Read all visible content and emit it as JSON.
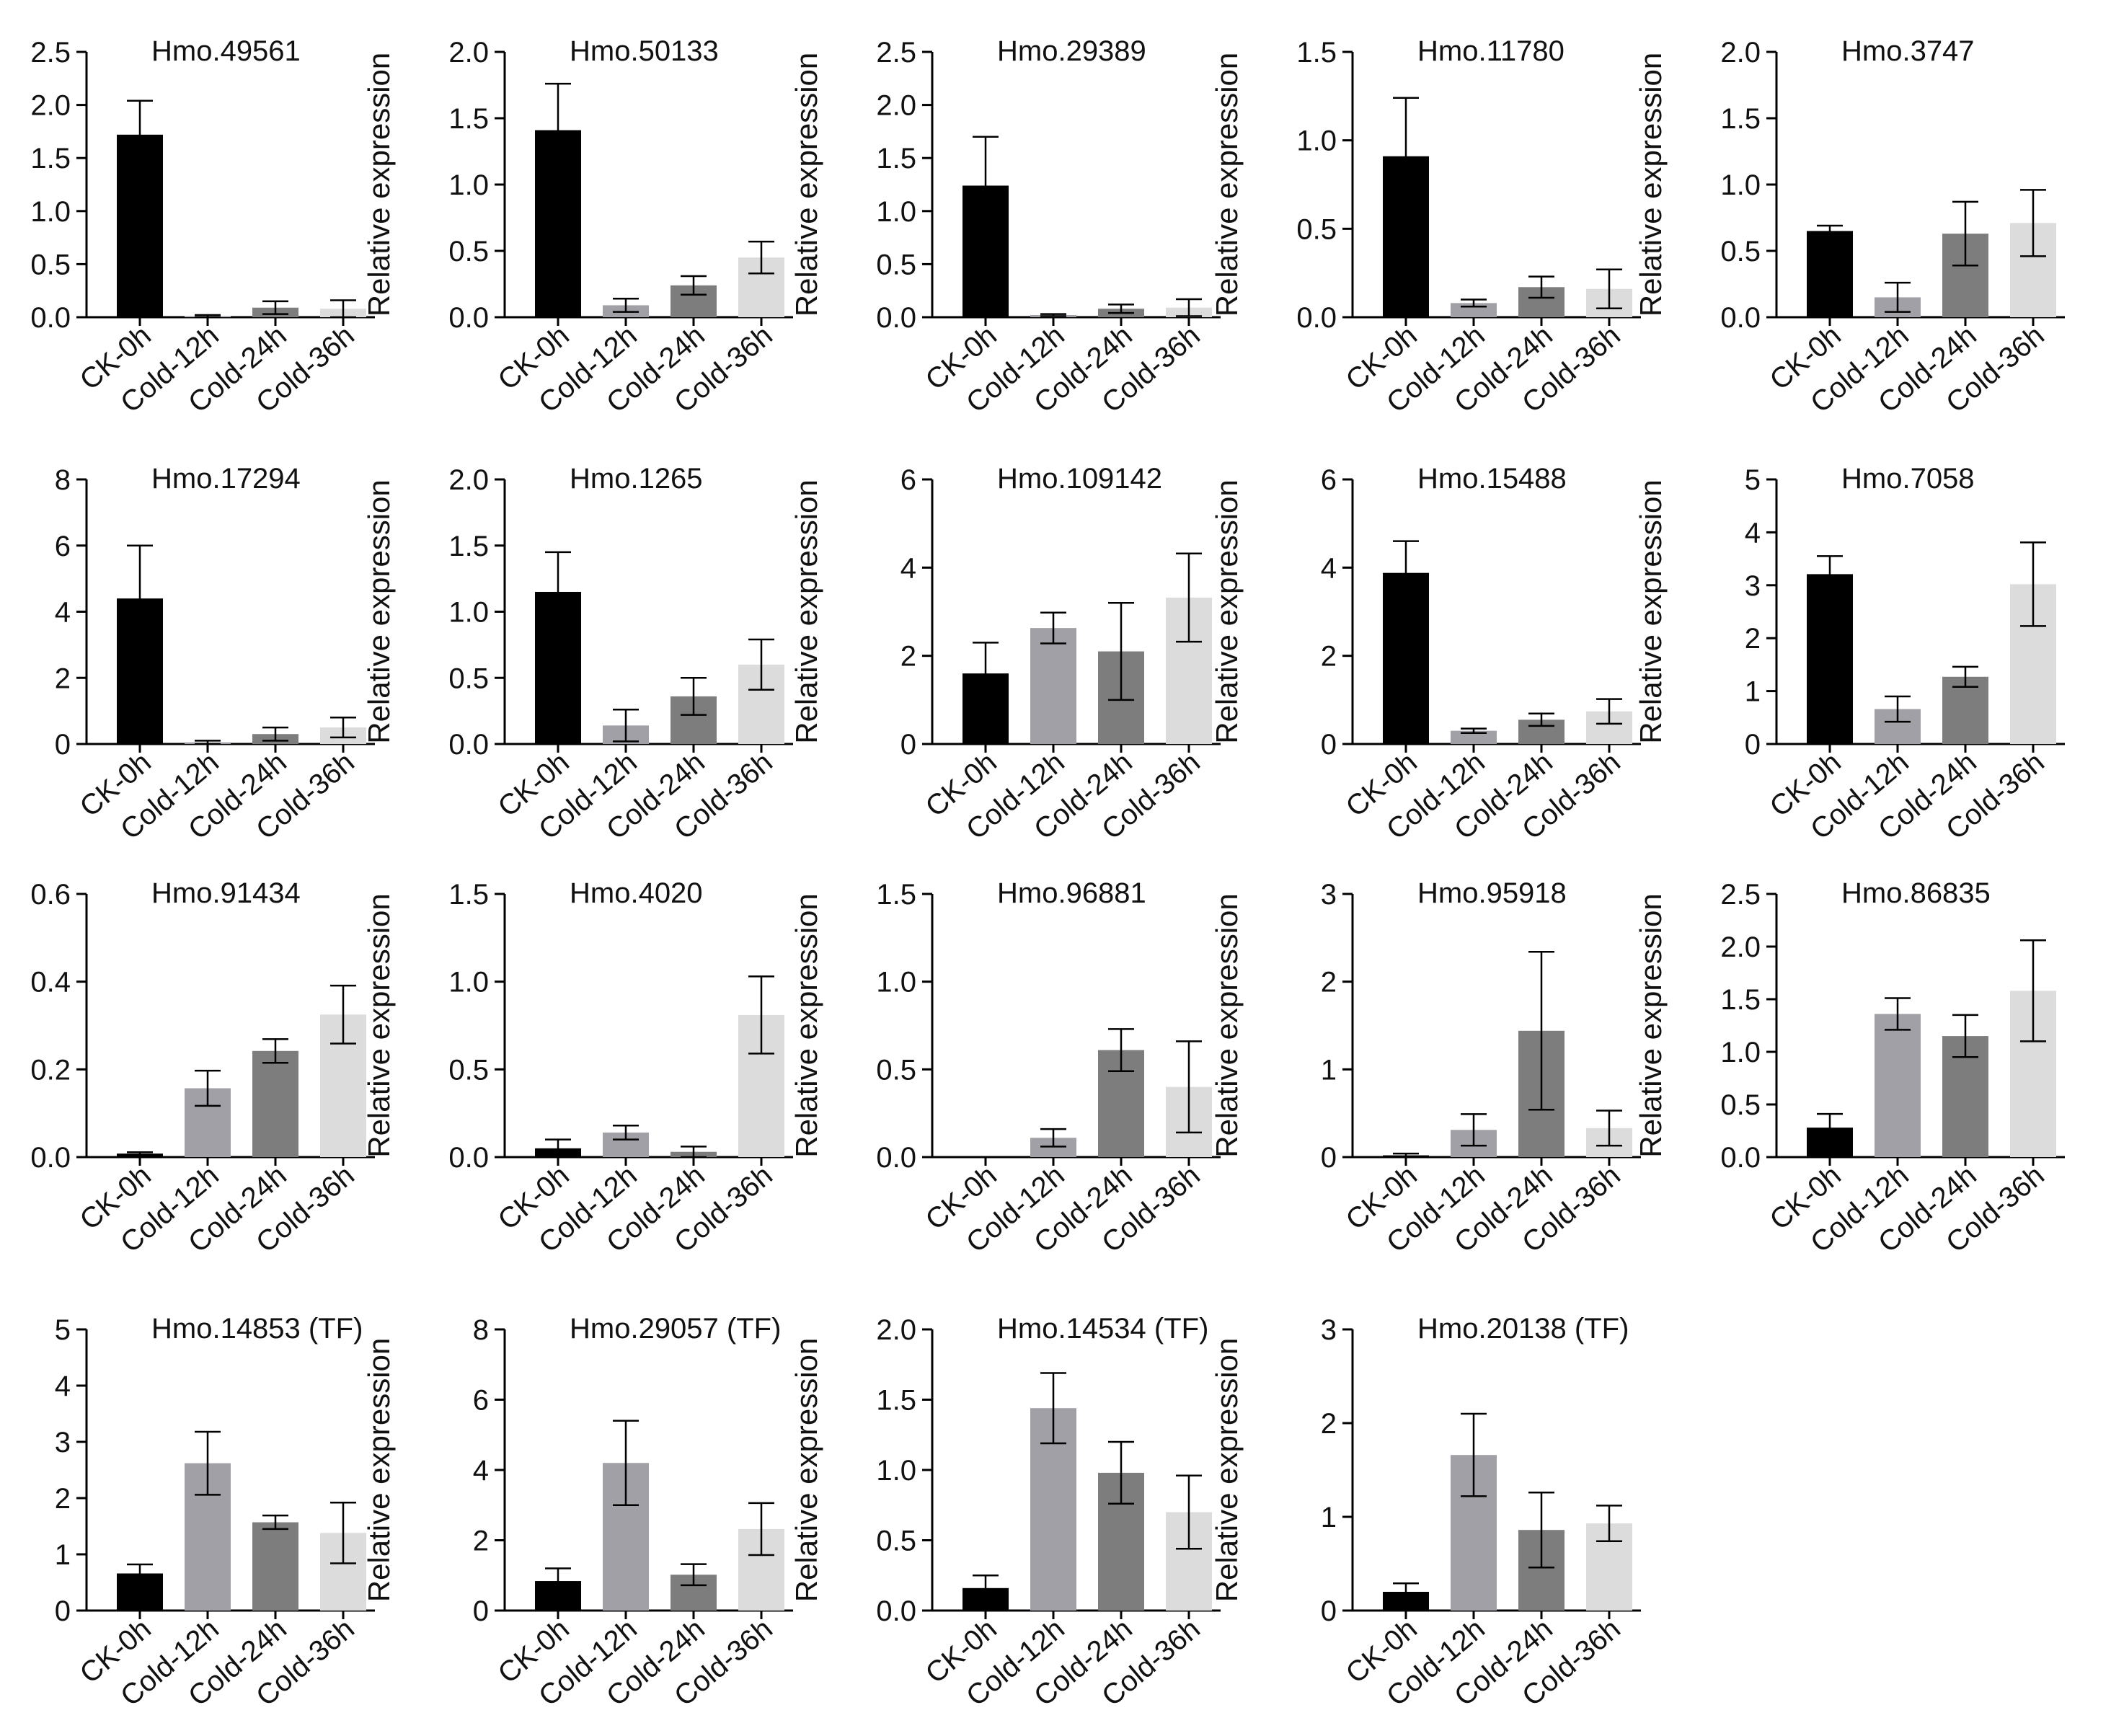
{
  "figure": {
    "ylabel": "Relative expression",
    "categories": [
      "CK-0h",
      "Cold-12h",
      "Cold-24h",
      "Cold-36h"
    ],
    "bar_colors": [
      "#000000",
      "#a0a0a6",
      "#7d7d7d",
      "#dcdcdc"
    ]
  },
  "chart_data": [
    {
      "type": "bar",
      "title": "Hmo.49561",
      "xlabel": "",
      "ylabel": "Relative expression",
      "categories": [
        "CK-0h",
        "Cold-12h",
        "Cold-24h",
        "Cold-36h"
      ],
      "ylim": [
        0,
        2.5
      ],
      "yticks": [
        "0.0",
        "0.5",
        "1.0",
        "1.5",
        "2.0",
        "2.5"
      ],
      "values": [
        1.72,
        0.01,
        0.09,
        0.08
      ],
      "errors": [
        0.32,
        0.01,
        0.06,
        0.08
      ]
    },
    {
      "type": "bar",
      "title": "Hmo.50133",
      "xlabel": "",
      "ylabel": "Relative expression",
      "categories": [
        "CK-0h",
        "Cold-12h",
        "Cold-24h",
        "Cold-36h"
      ],
      "ylim": [
        0,
        2.0
      ],
      "yticks": [
        "0.0",
        "0.5",
        "1.0",
        "1.5",
        "2.0"
      ],
      "values": [
        1.41,
        0.09,
        0.24,
        0.45
      ],
      "errors": [
        0.35,
        0.05,
        0.07,
        0.12
      ]
    },
    {
      "type": "bar",
      "title": "Hmo.29389",
      "xlabel": "",
      "ylabel": "Relative expression",
      "categories": [
        "CK-0h",
        "Cold-12h",
        "Cold-24h",
        "Cold-36h"
      ],
      "ylim": [
        0,
        2.5
      ],
      "yticks": [
        "0.0",
        "0.5",
        "1.0",
        "1.5",
        "2.0",
        "2.5"
      ],
      "values": [
        1.24,
        0.02,
        0.08,
        0.09
      ],
      "errors": [
        0.46,
        0.01,
        0.04,
        0.08
      ]
    },
    {
      "type": "bar",
      "title": "Hmo.11780",
      "xlabel": "",
      "ylabel": "Relative expression",
      "categories": [
        "CK-0h",
        "Cold-12h",
        "Cold-24h",
        "Cold-36h"
      ],
      "ylim": [
        0,
        1.5
      ],
      "yticks": [
        "0.0",
        "0.5",
        "1.0",
        "1.5"
      ],
      "values": [
        0.91,
        0.08,
        0.17,
        0.16
      ],
      "errors": [
        0.33,
        0.02,
        0.06,
        0.11
      ]
    },
    {
      "type": "bar",
      "title": "Hmo.3747",
      "xlabel": "",
      "ylabel": "Relative expression",
      "categories": [
        "CK-0h",
        "Cold-12h",
        "Cold-24h",
        "Cold-36h"
      ],
      "ylim": [
        0,
        2.0
      ],
      "yticks": [
        "0.0",
        "0.5",
        "1.0",
        "1.5",
        "2.0"
      ],
      "values": [
        0.65,
        0.15,
        0.63,
        0.71
      ],
      "errors": [
        0.04,
        0.11,
        0.24,
        0.25
      ]
    },
    {
      "type": "bar",
      "title": "Hmo.17294",
      "xlabel": "",
      "ylabel": "Relative expression",
      "categories": [
        "CK-0h",
        "Cold-12h",
        "Cold-24h",
        "Cold-36h"
      ],
      "ylim": [
        0,
        8
      ],
      "yticks": [
        "0",
        "2",
        "4",
        "6",
        "8"
      ],
      "values": [
        4.4,
        0.05,
        0.3,
        0.5
      ],
      "errors": [
        1.6,
        0.05,
        0.2,
        0.3
      ]
    },
    {
      "type": "bar",
      "title": "Hmo.1265",
      "xlabel": "",
      "ylabel": "Relative expression",
      "categories": [
        "CK-0h",
        "Cold-12h",
        "Cold-24h",
        "Cold-36h"
      ],
      "ylim": [
        0,
        2.0
      ],
      "yticks": [
        "0.0",
        "0.5",
        "1.0",
        "1.5",
        "2.0"
      ],
      "values": [
        1.15,
        0.14,
        0.36,
        0.6
      ],
      "errors": [
        0.3,
        0.12,
        0.14,
        0.19
      ]
    },
    {
      "type": "bar",
      "title": "Hmo.109142",
      "xlabel": "",
      "ylabel": "Relative expression",
      "categories": [
        "CK-0h",
        "Cold-12h",
        "Cold-24h",
        "Cold-36h"
      ],
      "ylim": [
        0,
        6
      ],
      "yticks": [
        "0",
        "2",
        "4",
        "6"
      ],
      "values": [
        1.6,
        2.63,
        2.1,
        3.32
      ],
      "errors": [
        0.7,
        0.35,
        1.1,
        1.0
      ]
    },
    {
      "type": "bar",
      "title": "Hmo.15488",
      "xlabel": "",
      "ylabel": "Relative expression",
      "categories": [
        "CK-0h",
        "Cold-12h",
        "Cold-24h",
        "Cold-36h"
      ],
      "ylim": [
        0,
        6
      ],
      "yticks": [
        "0",
        "2",
        "4",
        "6"
      ],
      "values": [
        3.88,
        0.3,
        0.55,
        0.74
      ],
      "errors": [
        0.72,
        0.05,
        0.14,
        0.28
      ]
    },
    {
      "type": "bar",
      "title": "Hmo.7058",
      "xlabel": "",
      "ylabel": "Relative expression",
      "categories": [
        "CK-0h",
        "Cold-12h",
        "Cold-24h",
        "Cold-36h"
      ],
      "ylim": [
        0,
        5
      ],
      "yticks": [
        "0",
        "1",
        "2",
        "3",
        "4",
        "5"
      ],
      "values": [
        3.21,
        0.66,
        1.27,
        3.02
      ],
      "errors": [
        0.34,
        0.24,
        0.19,
        0.79
      ]
    },
    {
      "type": "bar",
      "title": "Hmo.91434",
      "xlabel": "",
      "ylabel": "Relative expression",
      "categories": [
        "CK-0h",
        "Cold-12h",
        "Cold-24h",
        "Cold-36h"
      ],
      "ylim": [
        0,
        0.6
      ],
      "yticks": [
        "0.0",
        "0.2",
        "0.4",
        "0.6"
      ],
      "values": [
        0.008,
        0.157,
        0.242,
        0.325
      ],
      "errors": [
        0.003,
        0.04,
        0.027,
        0.066
      ]
    },
    {
      "type": "bar",
      "title": "Hmo.4020",
      "xlabel": "",
      "ylabel": "Relative expression",
      "categories": [
        "CK-0h",
        "Cold-12h",
        "Cold-24h",
        "Cold-36h"
      ],
      "ylim": [
        0,
        1.5
      ],
      "yticks": [
        "0.0",
        "0.5",
        "1.0",
        "1.5"
      ],
      "values": [
        0.05,
        0.14,
        0.03,
        0.81
      ],
      "errors": [
        0.05,
        0.04,
        0.03,
        0.22
      ]
    },
    {
      "type": "bar",
      "title": "Hmo.96881",
      "xlabel": "",
      "ylabel": "Relative expression",
      "categories": [
        "CK-0h",
        "Cold-12h",
        "Cold-24h",
        "Cold-36h"
      ],
      "ylim": [
        0,
        1.5
      ],
      "yticks": [
        "0.0",
        "0.5",
        "1.0",
        "1.5"
      ],
      "values": [
        0.0,
        0.11,
        0.61,
        0.4
      ],
      "errors": [
        0.0,
        0.05,
        0.12,
        0.26
      ]
    },
    {
      "type": "bar",
      "title": "Hmo.95918",
      "xlabel": "",
      "ylabel": "Relative expression",
      "categories": [
        "CK-0h",
        "Cold-12h",
        "Cold-24h",
        "Cold-36h"
      ],
      "ylim": [
        0,
        3
      ],
      "yticks": [
        "0",
        "1",
        "2",
        "3"
      ],
      "values": [
        0.02,
        0.31,
        1.44,
        0.33
      ],
      "errors": [
        0.02,
        0.18,
        0.9,
        0.2
      ]
    },
    {
      "type": "bar",
      "title": "Hmo.86835",
      "xlabel": "",
      "ylabel": "Relative expression",
      "categories": [
        "CK-0h",
        "Cold-12h",
        "Cold-24h",
        "Cold-36h"
      ],
      "ylim": [
        0,
        2.5
      ],
      "yticks": [
        "0.0",
        "0.5",
        "1.0",
        "1.5",
        "2.0",
        "2.5"
      ],
      "values": [
        0.28,
        1.36,
        1.15,
        1.58
      ],
      "errors": [
        0.13,
        0.15,
        0.2,
        0.48
      ]
    },
    {
      "type": "bar",
      "title": "Hmo.14853 (TF)",
      "xlabel": "",
      "ylabel": "Relative expression",
      "categories": [
        "CK-0h",
        "Cold-12h",
        "Cold-24h",
        "Cold-36h"
      ],
      "ylim": [
        0,
        5
      ],
      "yticks": [
        "0",
        "1",
        "2",
        "3",
        "4",
        "5"
      ],
      "values": [
        0.66,
        2.62,
        1.57,
        1.38
      ],
      "errors": [
        0.16,
        0.56,
        0.12,
        0.54
      ]
    },
    {
      "type": "bar",
      "title": "Hmo.29057 (TF)",
      "xlabel": "",
      "ylabel": "Relative expression",
      "categories": [
        "CK-0h",
        "Cold-12h",
        "Cold-24h",
        "Cold-36h"
      ],
      "ylim": [
        0,
        8
      ],
      "yticks": [
        "0",
        "2",
        "4",
        "6",
        "8"
      ],
      "values": [
        0.84,
        4.2,
        1.02,
        2.32
      ],
      "errors": [
        0.36,
        1.2,
        0.3,
        0.74
      ]
    },
    {
      "type": "bar",
      "title": "Hmo.14534 (TF)",
      "xlabel": "",
      "ylabel": "Relative expression",
      "categories": [
        "CK-0h",
        "Cold-12h",
        "Cold-24h",
        "Cold-36h"
      ],
      "ylim": [
        0,
        2.0
      ],
      "yticks": [
        "0.0",
        "0.5",
        "1.0",
        "1.5",
        "2.0"
      ],
      "values": [
        0.16,
        1.44,
        0.98,
        0.7
      ],
      "errors": [
        0.09,
        0.25,
        0.22,
        0.26
      ]
    },
    {
      "type": "bar",
      "title": "Hmo.20138 (TF)",
      "xlabel": "",
      "ylabel": "Relative expression",
      "categories": [
        "CK-0h",
        "Cold-12h",
        "Cold-24h",
        "Cold-36h"
      ],
      "ylim": [
        0,
        3
      ],
      "yticks": [
        "0",
        "1",
        "2",
        "3"
      ],
      "values": [
        0.2,
        1.66,
        0.86,
        0.93
      ],
      "errors": [
        0.09,
        0.44,
        0.4,
        0.19
      ]
    }
  ]
}
